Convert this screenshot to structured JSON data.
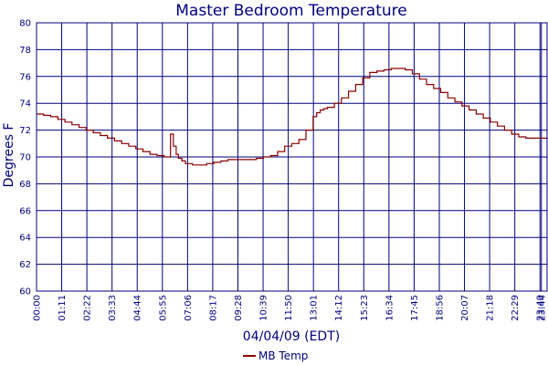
{
  "chart_data": {
    "type": "line",
    "title": "Master Bedroom Temperature",
    "xlabel": "04/04/09 (EDT)",
    "ylabel": "Degrees F",
    "ylim": [
      60,
      80
    ],
    "yticks": [
      60,
      62,
      64,
      66,
      68,
      70,
      72,
      74,
      76,
      78,
      80
    ],
    "xlim_minutes": [
      0,
      1440
    ],
    "xtick_labels": [
      "00:00",
      "01:11",
      "02:22",
      "03:33",
      "04:44",
      "05:55",
      "07:06",
      "08:17",
      "09:28",
      "10:39",
      "11:50",
      "13:01",
      "14:12",
      "15:23",
      "16:34",
      "17:45",
      "18:56",
      "20:07",
      "21:18",
      "22:29",
      "23:40",
      "23:44"
    ],
    "xtick_minutes": [
      0,
      71,
      142,
      213,
      284,
      355,
      426,
      497,
      568,
      639,
      710,
      781,
      852,
      923,
      994,
      1065,
      1136,
      1207,
      1278,
      1349,
      1420,
      1424
    ],
    "grid": true,
    "legend": "bottom-center",
    "series": [
      {
        "name": "MB Temp",
        "color": "#8b0000",
        "x_minutes": [
          0,
          20,
          40,
          60,
          80,
          100,
          120,
          140,
          160,
          180,
          200,
          220,
          240,
          260,
          280,
          300,
          320,
          340,
          360,
          370,
          378,
          386,
          394,
          400,
          410,
          420,
          440,
          460,
          480,
          500,
          520,
          540,
          560,
          580,
          600,
          620,
          640,
          660,
          680,
          700,
          720,
          740,
          760,
          780,
          790,
          800,
          810,
          820,
          840,
          860,
          880,
          900,
          920,
          940,
          960,
          980,
          1000,
          1020,
          1040,
          1060,
          1080,
          1100,
          1120,
          1140,
          1160,
          1180,
          1200,
          1220,
          1240,
          1260,
          1280,
          1300,
          1320,
          1340,
          1360,
          1380,
          1400,
          1420,
          1440
        ],
        "values": [
          73.2,
          73.1,
          73.0,
          72.8,
          72.6,
          72.4,
          72.2,
          72.0,
          71.8,
          71.6,
          71.4,
          71.2,
          71.0,
          70.8,
          70.6,
          70.4,
          70.2,
          70.1,
          70.0,
          70.0,
          71.7,
          70.8,
          70.2,
          69.9,
          69.7,
          69.5,
          69.4,
          69.4,
          69.5,
          69.6,
          69.7,
          69.8,
          69.8,
          69.8,
          69.8,
          69.9,
          70.0,
          70.1,
          70.4,
          70.8,
          71.0,
          71.3,
          72.0,
          73.0,
          73.3,
          73.5,
          73.6,
          73.7,
          74.0,
          74.4,
          74.9,
          75.4,
          75.9,
          76.3,
          76.4,
          76.5,
          76.6,
          76.6,
          76.5,
          76.2,
          75.8,
          75.4,
          75.1,
          74.8,
          74.4,
          74.1,
          73.8,
          73.5,
          73.2,
          72.9,
          72.6,
          72.3,
          72.0,
          71.7,
          71.5,
          71.4,
          71.4,
          71.4,
          71.4
        ]
      }
    ]
  }
}
